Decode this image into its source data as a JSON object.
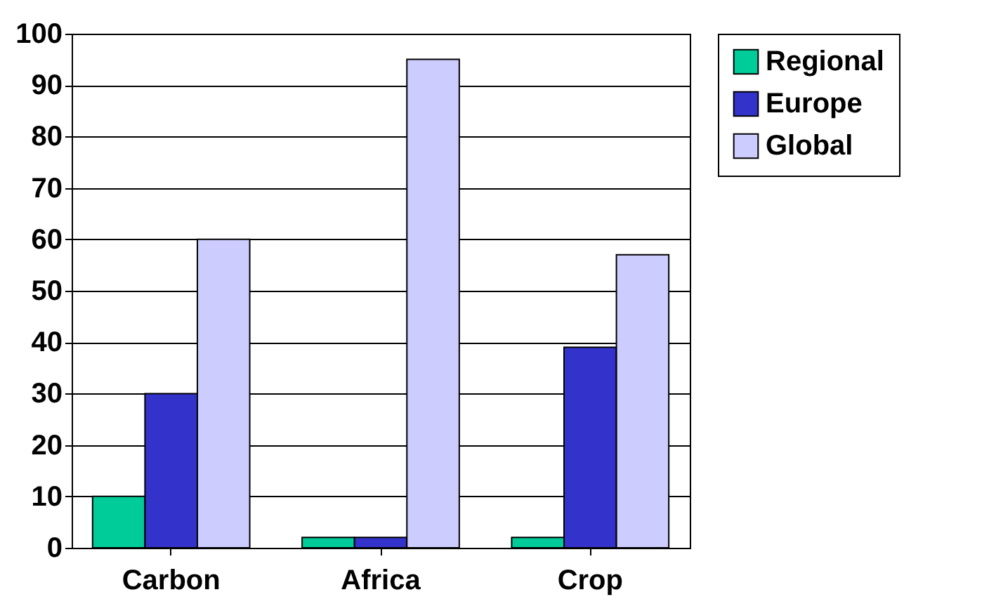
{
  "chart_data": {
    "type": "bar",
    "categories": [
      "Carbon",
      "Africa",
      "Crop"
    ],
    "series": [
      {
        "name": "Regional",
        "color": "#00cc99",
        "values": [
          10,
          2,
          2
        ]
      },
      {
        "name": "Europe",
        "color": "#3333cc",
        "values": [
          30,
          2,
          39
        ]
      },
      {
        "name": "Global",
        "color": "#ccccff",
        "values": [
          60,
          95,
          57
        ]
      }
    ],
    "ylim": [
      0,
      100
    ],
    "yticks": [
      0,
      10,
      20,
      30,
      40,
      50,
      60,
      70,
      80,
      90,
      100
    ],
    "grid": "y",
    "legend": "right"
  }
}
